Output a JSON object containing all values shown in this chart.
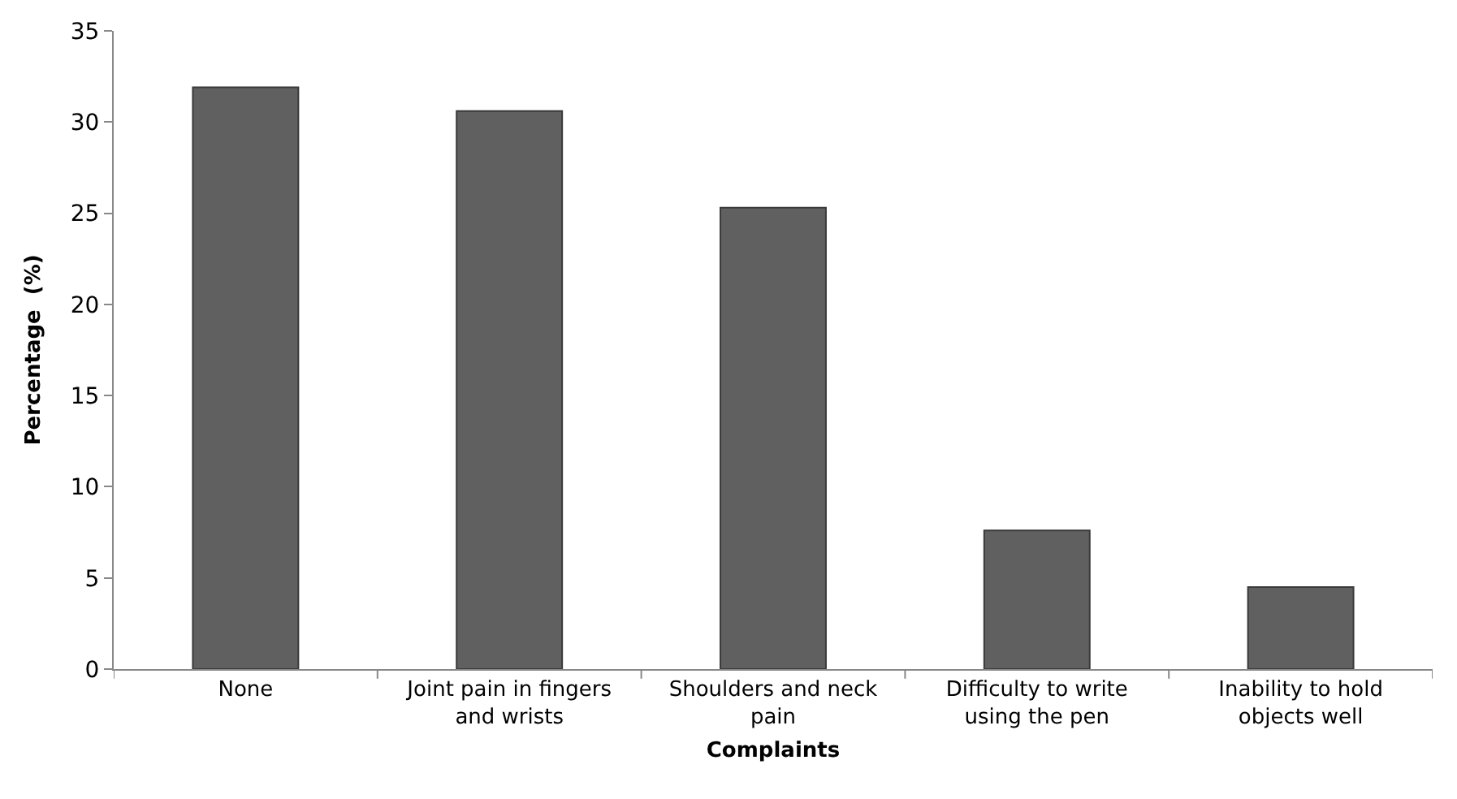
{
  "chart_data": {
    "type": "bar",
    "xlabel": "Complaints",
    "ylabel": "Percentage  (%)",
    "categories": [
      "None",
      "Joint pain in fingers and wrists",
      "Shoulders and neck pain",
      "Difficulty to write using the pen",
      "Inability to hold objects well"
    ],
    "values": [
      31.9,
      30.6,
      25.3,
      7.6,
      4.5
    ],
    "color": "#606060",
    "ylim": [
      0,
      35
    ],
    "yticks": [
      0,
      5,
      10,
      15,
      20,
      25,
      30,
      35
    ]
  }
}
